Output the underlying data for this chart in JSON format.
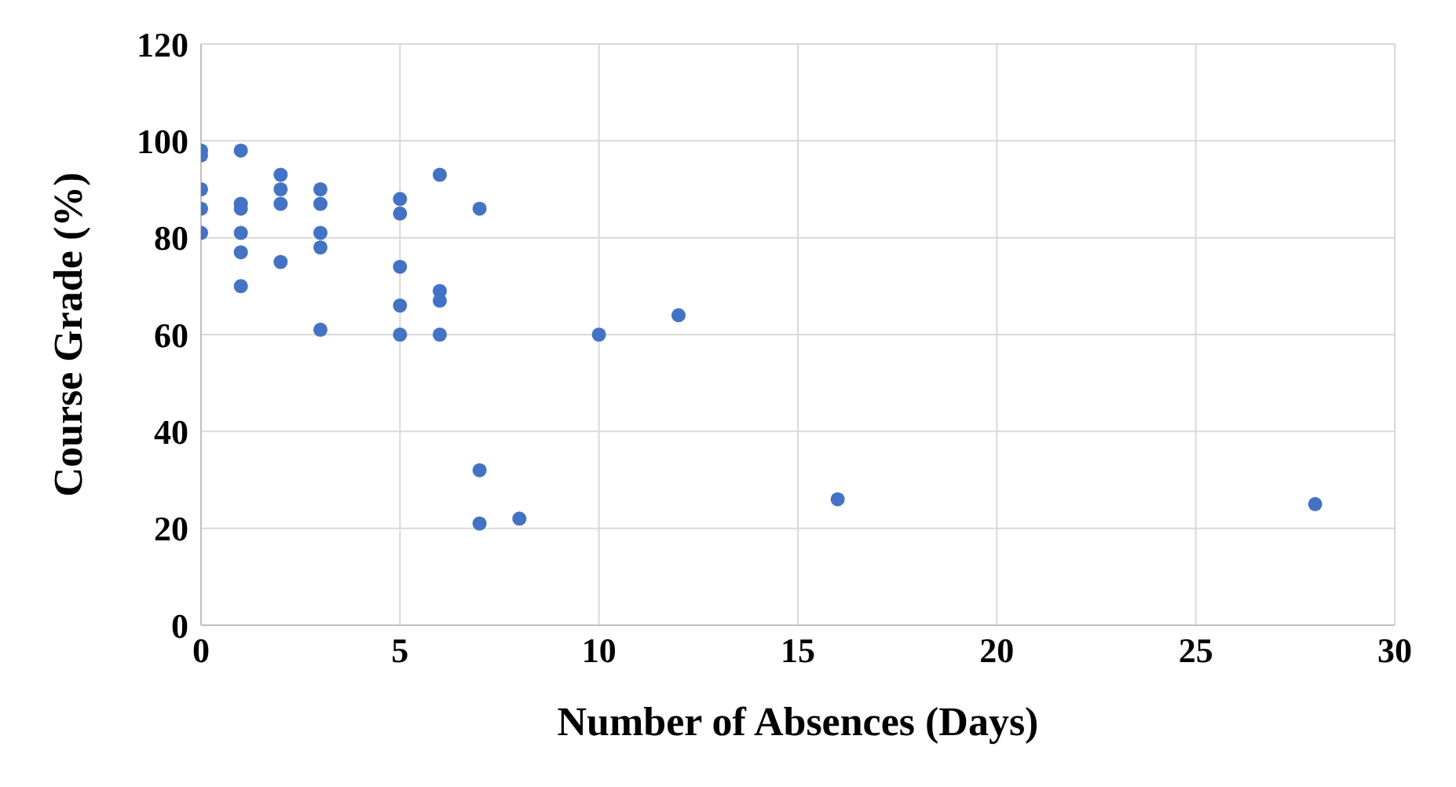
{
  "chart_data": {
    "type": "scatter",
    "xlabel": "Number of Absences (Days)",
    "ylabel": "Course Grade (%)",
    "x": [
      0,
      0,
      0,
      0,
      0,
      1,
      1,
      1,
      1,
      1,
      1,
      2,
      2,
      2,
      2,
      3,
      3,
      3,
      3,
      3,
      5,
      5,
      5,
      5,
      5,
      6,
      6,
      6,
      6,
      7,
      7,
      7,
      8,
      10,
      12,
      16,
      28
    ],
    "values": [
      98,
      97,
      90,
      86,
      81,
      98,
      87,
      86,
      81,
      77,
      70,
      93,
      90,
      87,
      75,
      90,
      87,
      81,
      78,
      61,
      88,
      85,
      74,
      66,
      60,
      93,
      69,
      67,
      60,
      86,
      32,
      21,
      22,
      60,
      64,
      26,
      25
    ],
    "color": "#4472c4",
    "marker": "circle",
    "xlim": [
      0,
      30
    ],
    "xticks": [
      0,
      5,
      10,
      15,
      20,
      25,
      30
    ],
    "ylim": [
      0,
      120
    ],
    "yticks": [
      0,
      20,
      40,
      60,
      80,
      100,
      120
    ],
    "grid": true
  }
}
